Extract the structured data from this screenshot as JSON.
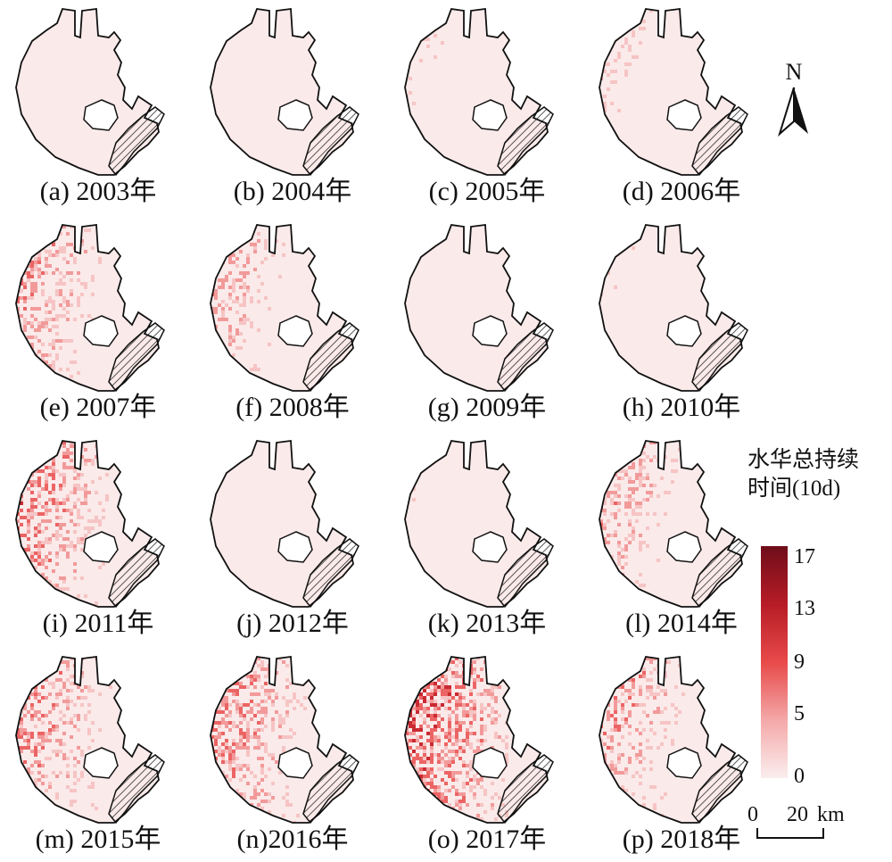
{
  "panels": [
    {
      "caption": "(a) 2003年",
      "intensity": 0.18
    },
    {
      "caption": "(b) 2004年",
      "intensity": 0.22
    },
    {
      "caption": "(c) 2005年",
      "intensity": 0.32
    },
    {
      "caption": "(d) 2006年",
      "intensity": 0.34
    },
    {
      "caption": "(e) 2007年",
      "intensity": 0.5
    },
    {
      "caption": "(f) 2008年",
      "intensity": 0.44
    },
    {
      "caption": "(g) 2009年",
      "intensity": 0.28
    },
    {
      "caption": "(h) 2010年",
      "intensity": 0.3
    },
    {
      "caption": "(i) 2011年",
      "intensity": 0.58
    },
    {
      "caption": "(j) 2012年",
      "intensity": 0.15
    },
    {
      "caption": "(k) 2013年",
      "intensity": 0.28
    },
    {
      "caption": "(l) 2014年",
      "intensity": 0.46
    },
    {
      "caption": "(m) 2015年",
      "intensity": 0.55
    },
    {
      "caption": "(n)2016年",
      "intensity": 0.58
    },
    {
      "caption": "(o) 2017年",
      "intensity": 0.75
    },
    {
      "caption": "(p) 2018年",
      "intensity": 0.5
    }
  ],
  "north": {
    "label": "N"
  },
  "legend": {
    "title_line1": "水华总持续",
    "title_line2": "时间(10d)",
    "ticks": [
      "17",
      "13",
      "9",
      "5",
      "0"
    ],
    "colors": [
      "#6e0e1a",
      "#b71c26",
      "#e84a4a",
      "#f4a8a8",
      "#fbeeee"
    ]
  },
  "scale_bar": {
    "left_label": "0",
    "right_label": "20",
    "unit": "km"
  }
}
